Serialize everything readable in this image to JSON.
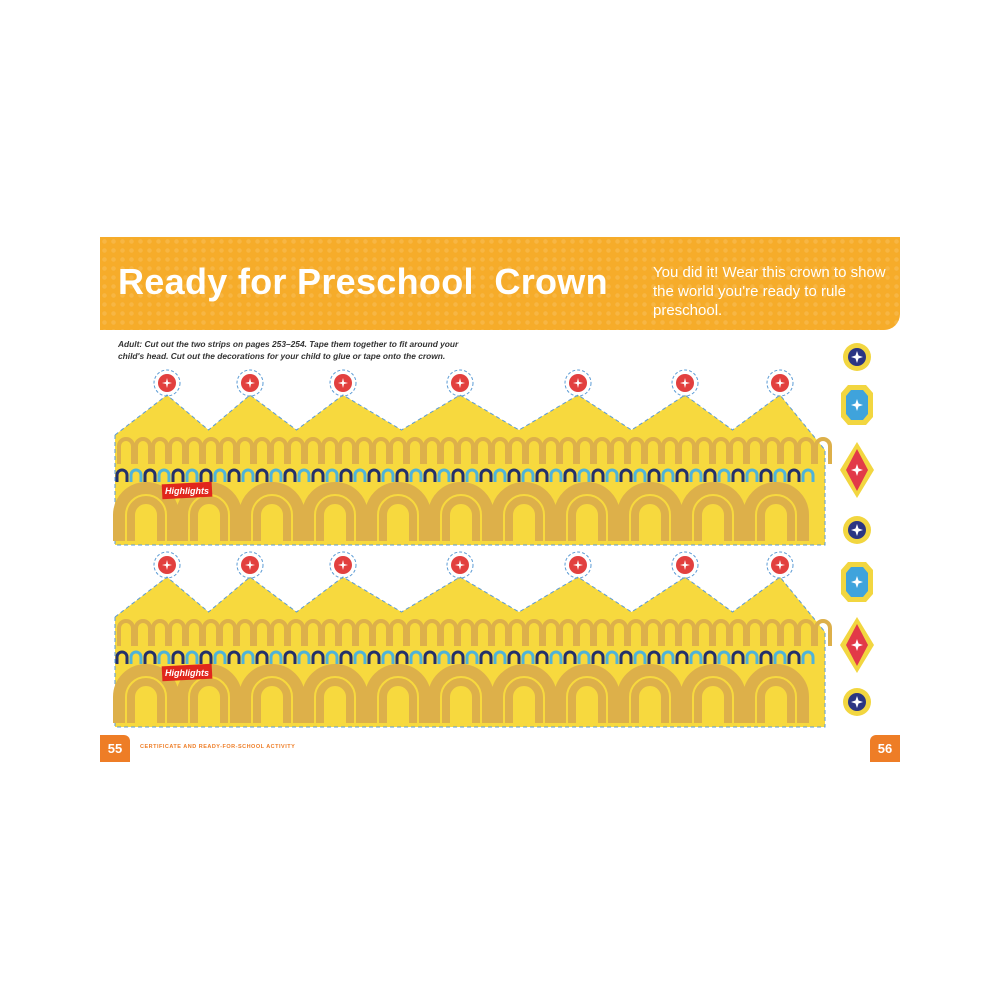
{
  "header": {
    "title": "Ready for Preschool  Crown",
    "intro": "You did it! Wear this crown to show the world you're ready to rule preschool."
  },
  "instructions": "Adult: Cut out the two strips on pages 253–254. Tape them together to fit around your child's head. Cut out the decorations for your child to glue or tape onto the crown.",
  "crown": {
    "strip_count": 2,
    "logo_text": "Highlights",
    "colors": {
      "crown_yellow": "#F7D93E",
      "arch_gold": "#DDB04A",
      "gem_red": "#E2403F",
      "cut_line": "#5B9BD5",
      "navy": "#23306B",
      "teal": "#4FB3D9"
    }
  },
  "decorations": [
    {
      "shape": "round",
      "color": "#2B3583"
    },
    {
      "shape": "octagon",
      "color": "#3FA3DC"
    },
    {
      "shape": "diamond",
      "color": "#E23A48"
    },
    {
      "shape": "round",
      "color": "#2B3583"
    },
    {
      "shape": "octagon",
      "color": "#3FA3DC"
    },
    {
      "shape": "diamond",
      "color": "#E23A48"
    },
    {
      "shape": "round",
      "color": "#2B3583"
    }
  ],
  "footer": {
    "left_page": "55",
    "right_page": "56",
    "section": "CERTIFICATE AND READY-FOR-SCHOOL ACTIVITY"
  }
}
